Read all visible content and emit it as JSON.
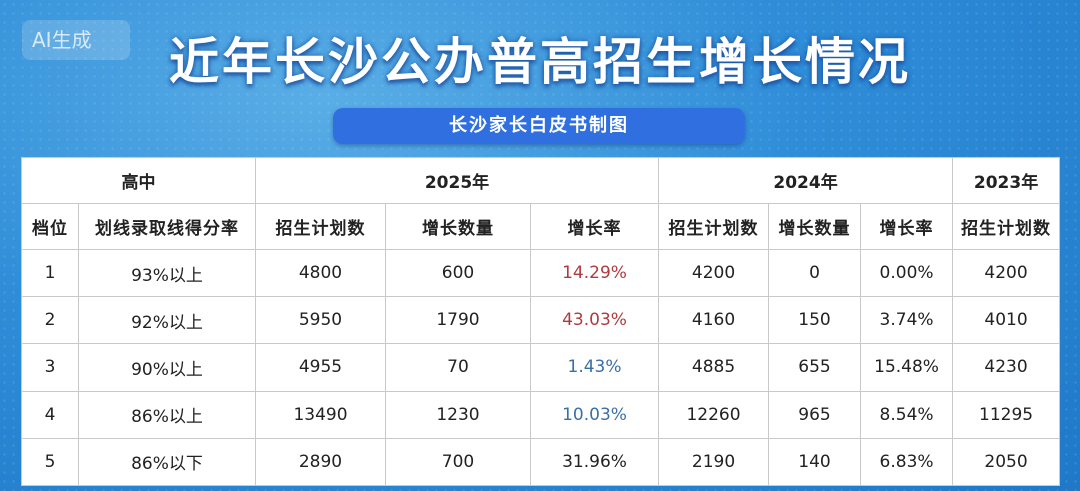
{
  "watermark": "AI生成",
  "title": "近年长沙公办普高招生增长情况",
  "subtitle": "长沙家长白皮书制图",
  "header_groups": {
    "school": "高中",
    "y2025": "2025年",
    "y2024": "2024年",
    "y2023": "2023年"
  },
  "columns": [
    "档位",
    "划线录取线得分率",
    "招生计划数",
    "增长数量",
    "增长率",
    "招生计划数",
    "增长数量",
    "增长率",
    "招生计划数"
  ],
  "rows": [
    {
      "tier": "1",
      "rate": "93%以上",
      "plan2025": "4800",
      "inc2025": "600",
      "growth2025": "14.29%",
      "plan2024": "4200",
      "inc2024": "0",
      "growth2024": "0.00%",
      "plan2023": "4200"
    },
    {
      "tier": "2",
      "rate": "92%以上",
      "plan2025": "5950",
      "inc2025": "1790",
      "growth2025": "43.03%",
      "plan2024": "4160",
      "inc2024": "150",
      "growth2024": "3.74%",
      "plan2023": "4010"
    },
    {
      "tier": "3",
      "rate": "90%以上",
      "plan2025": "4955",
      "inc2025": "70",
      "growth2025": "1.43%",
      "plan2024": "4885",
      "inc2024": "655",
      "growth2024": "15.48%",
      "plan2023": "4230"
    },
    {
      "tier": "4",
      "rate": "86%以上",
      "plan2025": "13490",
      "inc2025": "1230",
      "growth2025": "10.03%",
      "plan2024": "12260",
      "inc2024": "965",
      "growth2024": "8.54%",
      "plan2023": "11295"
    },
    {
      "tier": "5",
      "rate": "86%以下",
      "plan2025": "2890",
      "inc2025": "700",
      "growth2025": "31.96%",
      "plan2024": "2190",
      "inc2024": "140",
      "growth2024": "6.83%",
      "plan2023": "2050"
    }
  ],
  "colors": {
    "growth_high": "#b03a3e",
    "growth_low": "#3b6fa8",
    "accent_pill": "#2f6fe0"
  }
}
